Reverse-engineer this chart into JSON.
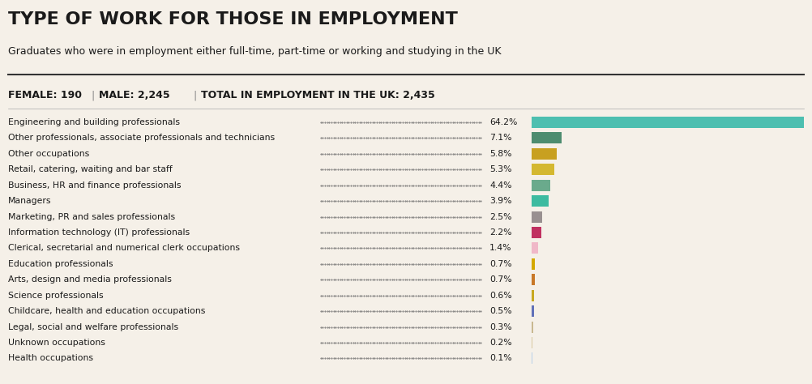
{
  "title": "TYPE OF WORK FOR THOSE IN EMPLOYMENT",
  "subtitle": "Graduates who were in employment either full-time, part-time or working and studying in the UK",
  "female": "190",
  "male": "2,245",
  "total": "2,435",
  "categories": [
    "Engineering and building professionals",
    "Other professionals, associate professionals and technicians",
    "Other occupations",
    "Retail, catering, waiting and bar staff",
    "Business, HR and finance professionals",
    "Managers",
    "Marketing, PR and sales professionals",
    "Information technology (IT) professionals",
    "Clerical, secretarial and numerical clerk occupations",
    "Education professionals",
    "Arts, design and media professionals",
    "Science professionals",
    "Childcare, health and education occupations",
    "Legal, social and welfare professionals",
    "Unknown occupations",
    "Health occupations"
  ],
  "values": [
    64.2,
    7.1,
    5.8,
    5.3,
    4.4,
    3.9,
    2.5,
    2.2,
    1.4,
    0.7,
    0.7,
    0.6,
    0.5,
    0.3,
    0.2,
    0.1
  ],
  "colors": [
    "#4dbfb0",
    "#4d8c6f",
    "#c8a020",
    "#d4b830",
    "#6aaa8c",
    "#3dbba0",
    "#999090",
    "#c03060",
    "#f0b8c8",
    "#d4a800",
    "#c87828",
    "#c8a820",
    "#6070b8",
    "#c8b890",
    "#d8c8a0",
    "#b8d0e8"
  ],
  "bg_color": "#f5f0e8",
  "title_fontsize": 16,
  "subtitle_fontsize": 9,
  "stats_fontsize": 9,
  "label_fontsize": 7.8,
  "value_fontsize": 7.8
}
